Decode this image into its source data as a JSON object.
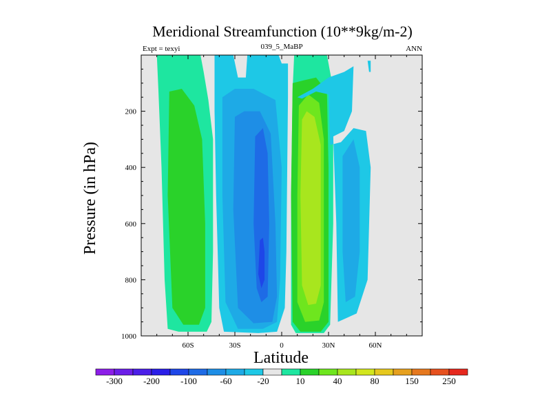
{
  "chart_data": {
    "type": "heatmap",
    "title": "Meridional Streamfunction (10**9kg/m-2)",
    "subtitle_left": "Expt = texyi",
    "subtitle_center": "039_5_MaBP",
    "subtitle_right": "ANN",
    "xlabel": "Latitude",
    "ylabel": "Pressure (in hPa)",
    "xlim": [
      -90,
      90
    ],
    "ylim": [
      1000,
      0
    ],
    "y_inverted": true,
    "x_ticks": [
      {
        "value": -60,
        "label": "60S"
      },
      {
        "value": -30,
        "label": "30S"
      },
      {
        "value": 0,
        "label": "0"
      },
      {
        "value": 30,
        "label": "30N"
      },
      {
        "value": 60,
        "label": "60N"
      }
    ],
    "y_ticks": [
      {
        "value": 200,
        "label": "200"
      },
      {
        "value": 400,
        "label": "400"
      },
      {
        "value": 600,
        "label": "600"
      },
      {
        "value": 800,
        "label": "800"
      },
      {
        "value": 1000,
        "label": "1000"
      }
    ],
    "background_color": "#e6e6e6",
    "colorbar": {
      "colors": [
        "#8c1ee8",
        "#6b1ee8",
        "#4b1ee8",
        "#2a1ee8",
        "#1e46e8",
        "#1e6be6",
        "#1e8ee6",
        "#1eaae6",
        "#1ec8e6",
        "#e6e6e6",
        "#1ee6a0",
        "#2ad22a",
        "#6ee61e",
        "#a8e61e",
        "#d2e61e",
        "#e6c81e",
        "#e6a01e",
        "#e6781e",
        "#e6501e",
        "#e6281e"
      ],
      "labels": [
        "-300",
        "-200",
        "-100",
        "-60",
        "-20",
        "10",
        "40",
        "80",
        "150",
        "250"
      ]
    },
    "regions": [
      {
        "level": 10,
        "color": "#1ee6a0",
        "points": [
          [
            -80,
            0
          ],
          [
            -79,
            120
          ],
          [
            -77,
            400
          ],
          [
            -75,
            800
          ],
          [
            -73,
            975
          ],
          [
            -66,
            985
          ],
          [
            -48,
            985
          ],
          [
            -45,
            950
          ],
          [
            -44,
            700
          ],
          [
            -44,
            300
          ],
          [
            -47,
            160
          ],
          [
            -50,
            60
          ],
          [
            -52,
            0
          ]
        ]
      },
      {
        "level": 40,
        "color": "#2ad22a",
        "points": [
          [
            -72,
            130
          ],
          [
            -73,
            500
          ],
          [
            -70,
            900
          ],
          [
            -63,
            960
          ],
          [
            -53,
            960
          ],
          [
            -49,
            900
          ],
          [
            -49,
            600
          ],
          [
            -51,
            300
          ],
          [
            -56,
            180
          ],
          [
            -64,
            120
          ]
        ]
      },
      {
        "level": -20,
        "color": "#1ec8e6",
        "points": [
          [
            -43,
            0
          ],
          [
            -43,
            200
          ],
          [
            -42,
            500
          ],
          [
            -40,
            900
          ],
          [
            -37,
            985
          ],
          [
            -15,
            990
          ],
          [
            -3,
            985
          ],
          [
            2,
            900
          ],
          [
            3,
            700
          ],
          [
            4,
            150
          ],
          [
            4,
            30
          ],
          [
            0,
            30
          ],
          [
            -2,
            0
          ],
          [
            -22,
            0
          ],
          [
            -23,
            80
          ],
          [
            -28,
            80
          ],
          [
            -31,
            0
          ]
        ]
      },
      {
        "level": -60,
        "color": "#1eaae6",
        "points": [
          [
            -38,
            150
          ],
          [
            -38,
            500
          ],
          [
            -36,
            880
          ],
          [
            -28,
            975
          ],
          [
            -12,
            975
          ],
          [
            -3,
            950
          ],
          [
            -1,
            800
          ],
          [
            0,
            400
          ],
          [
            -4,
            160
          ],
          [
            -18,
            120
          ],
          [
            -30,
            120
          ]
        ]
      },
      {
        "level": -100,
        "color": "#1e8ee6",
        "points": [
          [
            -30,
            220
          ],
          [
            -31,
            550
          ],
          [
            -28,
            900
          ],
          [
            -18,
            955
          ],
          [
            -6,
            950
          ],
          [
            -3,
            860
          ],
          [
            -4,
            600
          ],
          [
            -7,
            280
          ],
          [
            -14,
            200
          ],
          [
            -24,
            200
          ]
        ]
      },
      {
        "level": -200,
        "color": "#1e6be6",
        "points": [
          [
            -17,
            290
          ],
          [
            -18,
            600
          ],
          [
            -16,
            830
          ],
          [
            -13,
            880
          ],
          [
            -9,
            860
          ],
          [
            -8,
            600
          ],
          [
            -9,
            350
          ],
          [
            -12,
            260
          ]
        ]
      },
      {
        "level": -300,
        "color": "#1e46e8",
        "points": [
          [
            -14,
            660
          ],
          [
            -15,
            780
          ],
          [
            -13,
            830
          ],
          [
            -11,
            800
          ],
          [
            -11,
            700
          ],
          [
            -12,
            650
          ]
        ]
      },
      {
        "level": 10,
        "color": "#1ee6a0",
        "points": [
          [
            8,
            0
          ],
          [
            7,
            120
          ],
          [
            6,
            500
          ],
          [
            6,
            960
          ],
          [
            9,
            990
          ],
          [
            27,
            990
          ],
          [
            31,
            960
          ],
          [
            33,
            600
          ],
          [
            33,
            120
          ],
          [
            29,
            0
          ]
        ]
      },
      {
        "level": 40,
        "color": "#2ad22a",
        "points": [
          [
            7,
            100
          ],
          [
            6,
            500
          ],
          [
            7,
            950
          ],
          [
            12,
            985
          ],
          [
            25,
            985
          ],
          [
            30,
            950
          ],
          [
            30,
            400
          ],
          [
            29,
            130
          ],
          [
            22,
            80
          ],
          [
            14,
            90
          ]
        ]
      },
      {
        "level": 80,
        "color": "#6ee61e",
        "points": [
          [
            11,
            180
          ],
          [
            10,
            500
          ],
          [
            10,
            880
          ],
          [
            15,
            950
          ],
          [
            24,
            945
          ],
          [
            27,
            880
          ],
          [
            27,
            300
          ],
          [
            24,
            170
          ],
          [
            17,
            140
          ]
        ]
      },
      {
        "level": 150,
        "color": "#a8e61e",
        "points": [
          [
            13,
            230
          ],
          [
            12,
            500
          ],
          [
            13,
            820
          ],
          [
            17,
            890
          ],
          [
            22,
            885
          ],
          [
            25,
            820
          ],
          [
            25,
            320
          ],
          [
            21,
            220
          ],
          [
            16,
            200
          ]
        ]
      },
      {
        "level": -20,
        "color": "#1ec8e6",
        "points": [
          [
            10,
            150
          ],
          [
            20,
            120
          ],
          [
            30,
            80
          ],
          [
            40,
            60
          ],
          [
            46,
            40
          ],
          [
            45,
            200
          ],
          [
            40,
            270
          ],
          [
            33,
            290
          ],
          [
            35,
            600
          ],
          [
            36,
            950
          ],
          [
            48,
            920
          ],
          [
            55,
            800
          ],
          [
            57,
            400
          ],
          [
            54,
            270
          ],
          [
            46,
            260
          ],
          [
            38,
            310
          ],
          [
            31,
            320
          ],
          [
            30,
            140
          ],
          [
            22,
            130
          ],
          [
            13,
            155
          ]
        ]
      },
      {
        "level": -20,
        "color": "#1ec8e6",
        "points": [
          [
            55,
            20
          ],
          [
            56,
            60
          ],
          [
            57,
            60
          ],
          [
            57,
            20
          ]
        ]
      },
      {
        "level": -60,
        "color": "#1eaae6",
        "points": [
          [
            39,
            360
          ],
          [
            39,
            700
          ],
          [
            41,
            880
          ],
          [
            47,
            860
          ],
          [
            50,
            700
          ],
          [
            50,
            400
          ],
          [
            46,
            300
          ]
        ]
      }
    ]
  }
}
